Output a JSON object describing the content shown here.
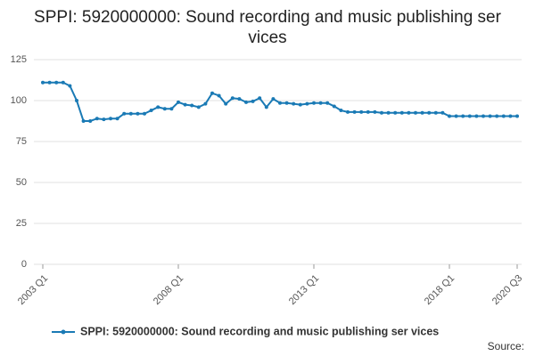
{
  "chart_data": {
    "type": "line",
    "title": "SPPI: 5920000000: Sound recording and music publishing ser vices",
    "categories": [
      "2003 Q1",
      null,
      null,
      null,
      null,
      null,
      null,
      null,
      null,
      null,
      null,
      null,
      null,
      null,
      null,
      null,
      null,
      null,
      null,
      null,
      "2008 Q1",
      null,
      null,
      null,
      null,
      null,
      null,
      null,
      null,
      null,
      null,
      null,
      null,
      null,
      null,
      null,
      null,
      null,
      null,
      null,
      "2013 Q1",
      null,
      null,
      null,
      null,
      null,
      null,
      null,
      null,
      null,
      null,
      null,
      null,
      null,
      null,
      null,
      null,
      null,
      null,
      null,
      "2018 Q1",
      null,
      null,
      null,
      null,
      null,
      null,
      null,
      null,
      null,
      "2020 Q3"
    ],
    "series": [
      {
        "name": "SPPI: 5920000000: Sound recording and music publishing ser vices",
        "color": "#1a7ab5",
        "values": [
          111,
          111,
          111,
          111,
          109,
          100,
          87.5,
          87.5,
          89,
          88.5,
          89,
          89,
          92,
          92,
          92,
          92,
          94,
          96,
          95,
          95,
          99,
          97.5,
          97,
          96,
          98,
          104.5,
          103,
          98,
          101.5,
          101,
          99,
          99.5,
          101.5,
          96,
          101,
          98.5,
          98.5,
          98,
          97.5,
          98,
          98.5,
          98.5,
          98.5,
          96.5,
          94,
          93,
          93,
          93,
          93,
          93,
          92.5,
          92.5,
          92.5,
          92.5,
          92.5,
          92.5,
          92.5,
          92.5,
          92.5,
          92.5,
          90.5,
          90.5,
          90.5,
          90.5,
          90.5,
          90.5,
          90.5,
          90.5,
          90.5,
          90.5,
          90.5
        ]
      }
    ],
    "ylim": [
      0,
      125
    ],
    "yticks": [
      0,
      25,
      50,
      75,
      100,
      125
    ],
    "grid": true,
    "source": "Source:"
  }
}
